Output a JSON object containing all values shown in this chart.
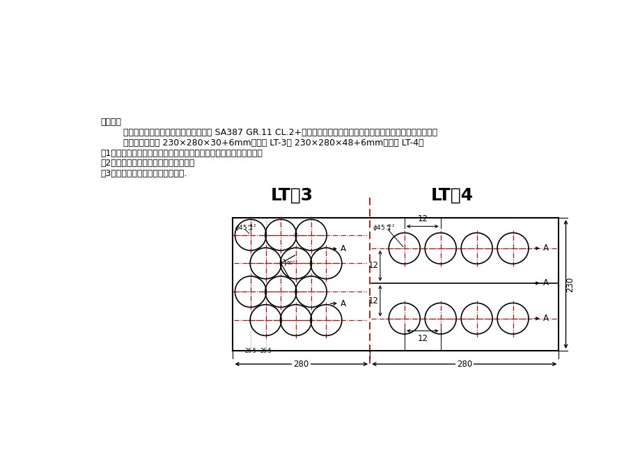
{
  "bg_color": "#ffffff",
  "text_color": "#000000",
  "red_color": "#cc0000",
  "line_color": "#000000",
  "title_text": "生产科：",
  "line1": "焊评及拉脱试板需进行如下加工（材质 SA387 GR.11 CL.2+堆焊，以下全部加工均为机加工，不得动火），请予安排。",
  "line2": "试板原始规格： 230×280×30+6mm，编号 LT-3； 230×280×48+6mm，编号 LT-4；",
  "line3": "（1）、沿虚线将试板切开（原试板为点焊在一起同时堆焊的表面）；",
  "line4": "（2）、将两块试板堆焊表面刨削平齐；",
  "line5": "（3）、将两块试板分别按下图钒孔.",
  "label_lt3": "LT－3",
  "label_lt4": "LT－4",
  "dim_280": "280",
  "dim_230": "230",
  "dim_265a": "26.5",
  "dim_265b": "26.5",
  "dim_12": "12",
  "dim_12v": "12",
  "dim_12h": "12",
  "label_A": "A",
  "font_size_body": 9.0,
  "font_size_label": 18,
  "font_size_dim": 8.5
}
